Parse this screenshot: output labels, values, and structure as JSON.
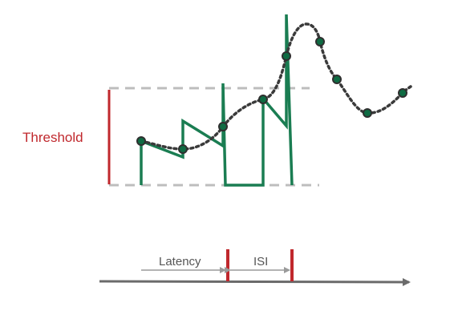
{
  "labels": {
    "threshold": "Threshold",
    "latency": "Latency",
    "isi": "ISI"
  },
  "colors": {
    "threshold": "#c0282d",
    "spike_trace": "#1a7d52",
    "dots": "#0f6b43",
    "curve": "#3a3a3a",
    "dashed_guides": "#bdbdbd",
    "time_axis": "#6b6b6b",
    "bracket_arrows": "#9a9a9a"
  }
}
